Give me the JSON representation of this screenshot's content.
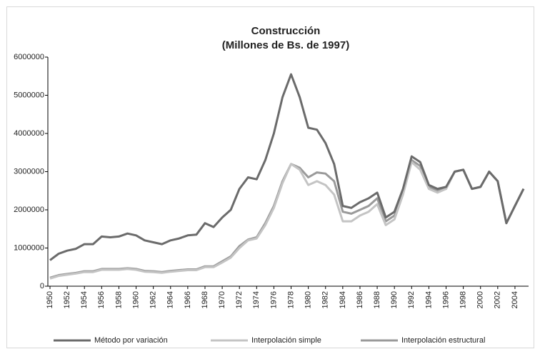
{
  "chart_data": {
    "type": "line",
    "title": "Construcción",
    "subtitle": "(Millones de Bs. de 1997)",
    "x": [
      1950,
      1951,
      1952,
      1953,
      1954,
      1955,
      1956,
      1957,
      1958,
      1959,
      1960,
      1961,
      1962,
      1963,
      1964,
      1965,
      1966,
      1967,
      1968,
      1969,
      1970,
      1971,
      1972,
      1973,
      1974,
      1975,
      1976,
      1977,
      1978,
      1979,
      1980,
      1981,
      1982,
      1983,
      1984,
      1985,
      1986,
      1987,
      1988,
      1989,
      1990,
      1991,
      1992,
      1993,
      1994,
      1995,
      1996,
      1997,
      1998,
      1999,
      2000,
      2001,
      2002,
      2003,
      2004,
      2005
    ],
    "xlim": [
      1950,
      2005
    ],
    "xticks": [
      1950,
      1952,
      1954,
      1956,
      1958,
      1960,
      1962,
      1964,
      1966,
      1968,
      1970,
      1972,
      1974,
      1976,
      1978,
      1980,
      1982,
      1984,
      1986,
      1988,
      1990,
      1992,
      1994,
      1996,
      1998,
      2000,
      2002,
      2004
    ],
    "ylim": [
      0,
      6000000
    ],
    "yticks": [
      0,
      1000000,
      2000000,
      3000000,
      4000000,
      5000000,
      6000000
    ],
    "grid": false,
    "legend": "bottom",
    "series": [
      {
        "name": "Método por variación",
        "color": "#6b6b6b",
        "values": [
          680000,
          850000,
          930000,
          980000,
          1100000,
          1100000,
          1300000,
          1280000,
          1300000,
          1380000,
          1330000,
          1200000,
          1150000,
          1100000,
          1200000,
          1250000,
          1330000,
          1350000,
          1650000,
          1550000,
          1800000,
          2000000,
          2550000,
          2850000,
          2800000,
          3300000,
          4000000,
          4950000,
          5550000,
          4950000,
          4150000,
          4100000,
          3750000,
          3200000,
          2100000,
          2050000,
          2200000,
          2300000,
          2450000,
          1800000,
          1950000,
          2550000,
          3400000,
          3250000,
          2650000,
          2550000,
          2600000,
          3000000,
          3050000,
          2550000,
          2600000,
          3000000,
          2750000,
          1650000,
          2100000,
          2550000
        ]
      },
      {
        "name": "Interpolación simple",
        "color": "#c4c4c4",
        "values": [
          200000,
          270000,
          300000,
          330000,
          370000,
          370000,
          430000,
          430000,
          430000,
          450000,
          430000,
          380000,
          370000,
          350000,
          380000,
          400000,
          420000,
          420000,
          500000,
          500000,
          620000,
          750000,
          1000000,
          1200000,
          1250000,
          1600000,
          2050000,
          2700000,
          3200000,
          3050000,
          2650000,
          2750000,
          2650000,
          2400000,
          1700000,
          1700000,
          1850000,
          1950000,
          2150000,
          1600000,
          1750000,
          2400000,
          3250000,
          3050000,
          2550000,
          2450000,
          2550000,
          3000000,
          3050000,
          2550000,
          2600000,
          3000000,
          2750000,
          1650000,
          2100000,
          2550000
        ]
      },
      {
        "name": "Interpolación estructural",
        "color": "#9a9a9a",
        "values": [
          220000,
          290000,
          320000,
          350000,
          390000,
          390000,
          450000,
          450000,
          450000,
          470000,
          450000,
          400000,
          390000,
          370000,
          400000,
          420000,
          440000,
          440000,
          520000,
          520000,
          650000,
          780000,
          1050000,
          1220000,
          1280000,
          1650000,
          2100000,
          2750000,
          3200000,
          3100000,
          2850000,
          2980000,
          2950000,
          2750000,
          1950000,
          1900000,
          2000000,
          2100000,
          2300000,
          1700000,
          1850000,
          2500000,
          3300000,
          3150000,
          2600000,
          2500000,
          2550000,
          3000000,
          3050000,
          2550000,
          2600000,
          3000000,
          2750000,
          1650000,
          2100000,
          2550000
        ]
      }
    ]
  }
}
